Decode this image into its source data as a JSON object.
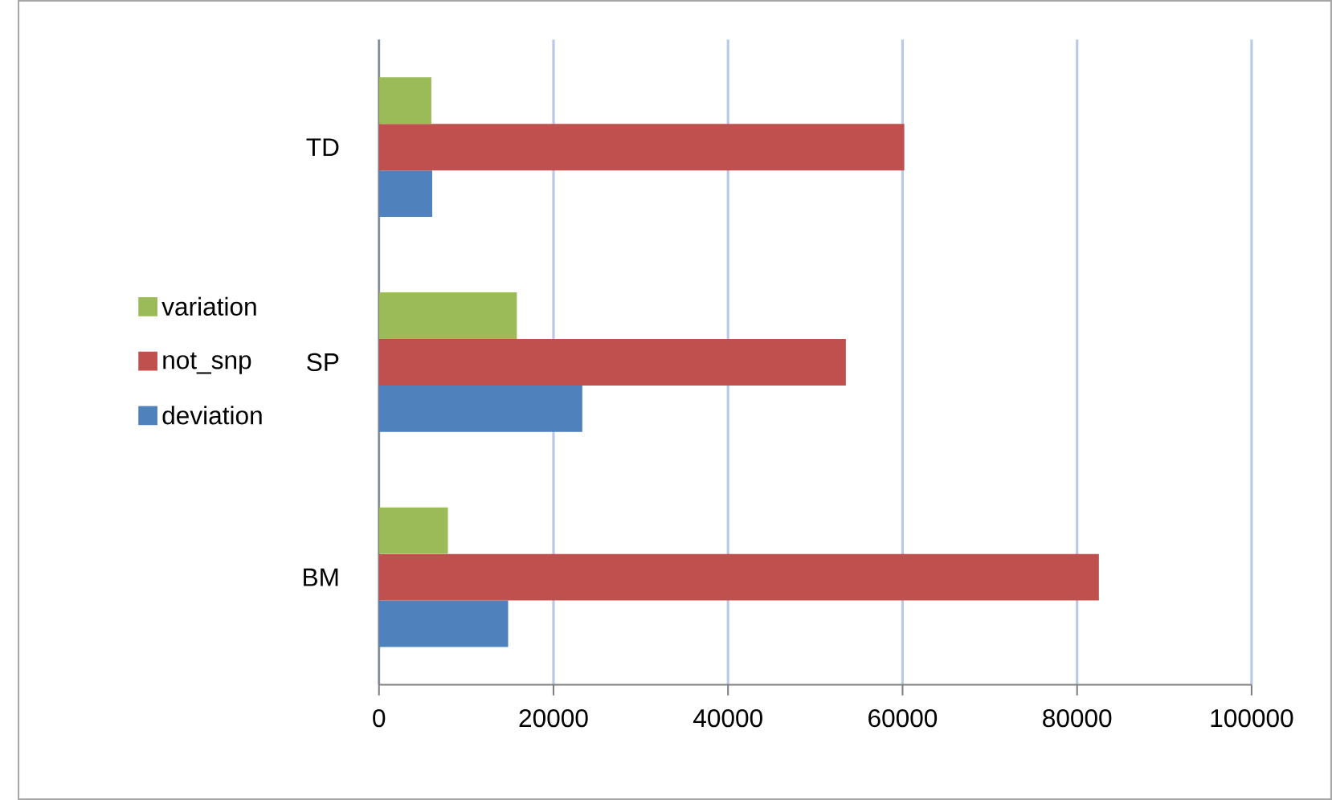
{
  "chart_data": {
    "type": "bar",
    "orientation": "horizontal",
    "categories": [
      "TD",
      "SP",
      "BM"
    ],
    "series": [
      {
        "name": "deviation",
        "color": "#4f81bd",
        "values": [
          6100,
          23300,
          14800
        ]
      },
      {
        "name": "not_snp",
        "color": "#c0504d",
        "values": [
          60200,
          53500,
          82500
        ]
      },
      {
        "name": "variation",
        "color": "#9bbb59",
        "values": [
          6000,
          15800,
          7900
        ]
      }
    ],
    "xlim": [
      0,
      100000
    ],
    "xticks": [
      0,
      20000,
      40000,
      60000,
      80000,
      100000
    ],
    "grid": "x",
    "legend": "left"
  }
}
